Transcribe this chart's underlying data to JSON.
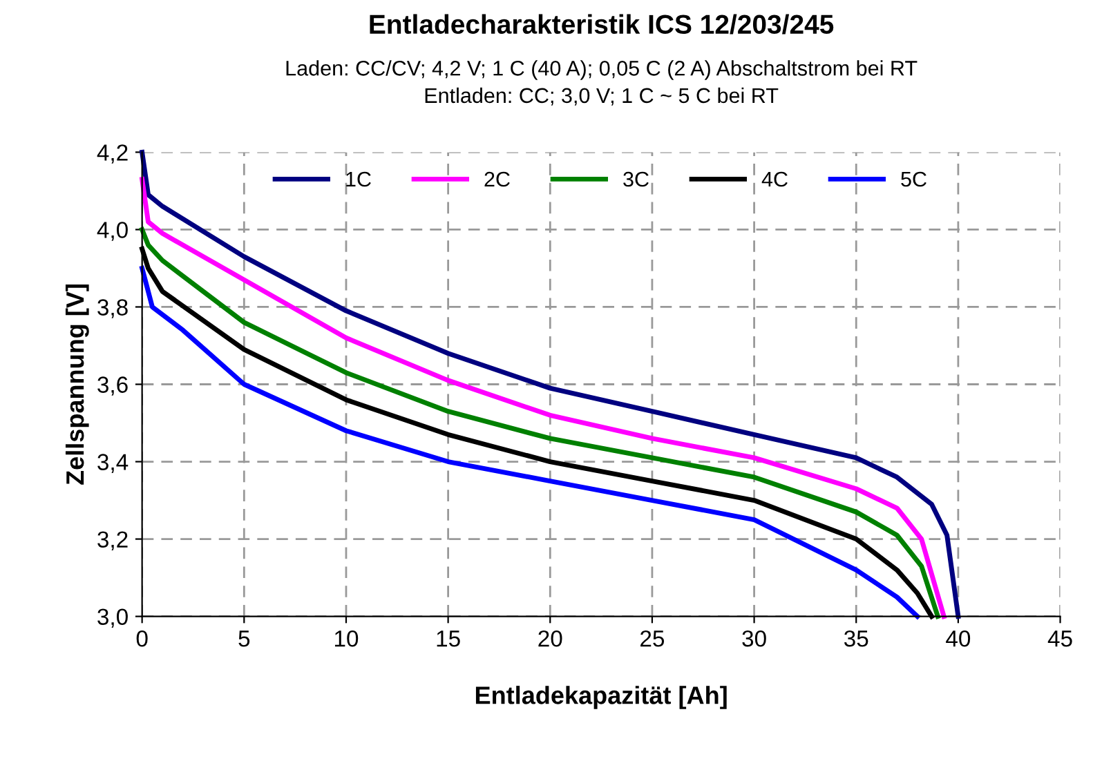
{
  "chart_data": {
    "type": "line",
    "title": "Entladecharakteristik ICS 12/203/245",
    "subtitle": "Laden: CC/CV; 4,2 V; 1 C (40 A); 0,05 C (2 A) Abschaltstrom bei RT\nEntladen: CC; 3,0 V; 1 C ~ 5 C bei RT",
    "xlabel": "Entladekapazität [Ah]",
    "ylabel": "Zellspannung [V]",
    "xlim": [
      0,
      45
    ],
    "xticks": [
      0,
      5,
      10,
      15,
      20,
      25,
      30,
      35,
      40,
      45
    ],
    "ylim": [
      3.0,
      4.2
    ],
    "yticks": [
      {
        "value": 3.0,
        "label": "3,0"
      },
      {
        "value": 3.2,
        "label": "3,2"
      },
      {
        "value": 3.4,
        "label": "3,4"
      },
      {
        "value": 3.6,
        "label": "3,6"
      },
      {
        "value": 3.8,
        "label": "3,8"
      },
      {
        "value": 4.0,
        "label": "4,0"
      },
      {
        "value": 4.2,
        "label": "4,2"
      }
    ],
    "grid": true,
    "legend": "top",
    "line_style": "solid",
    "marker": "none",
    "series": [
      {
        "name": "1C",
        "color": "#000080",
        "x": [
          0,
          0.3,
          1,
          5,
          10,
          15,
          20,
          25,
          30,
          35,
          37,
          38.7,
          39.45,
          40.0
        ],
        "values": [
          4.2,
          4.09,
          4.06,
          3.93,
          3.79,
          3.68,
          3.59,
          3.53,
          3.47,
          3.41,
          3.36,
          3.29,
          3.21,
          3.0
        ]
      },
      {
        "name": "2C",
        "color": "#ff00ff",
        "x": [
          0,
          0.3,
          1,
          5,
          10,
          15,
          20,
          25,
          30,
          35,
          37,
          38.2,
          39.3
        ],
        "values": [
          4.13,
          4.02,
          3.99,
          3.87,
          3.72,
          3.61,
          3.52,
          3.46,
          3.41,
          3.33,
          3.28,
          3.2,
          3.0
        ]
      },
      {
        "name": "3C",
        "color": "#008000",
        "x": [
          0,
          0.3,
          1,
          5,
          10,
          15,
          20,
          25,
          30,
          35,
          37,
          38.2,
          39.0
        ],
        "values": [
          4.0,
          3.96,
          3.92,
          3.76,
          3.63,
          3.53,
          3.46,
          3.41,
          3.36,
          3.27,
          3.21,
          3.13,
          3.0
        ]
      },
      {
        "name": "4C",
        "color": "#000000",
        "x": [
          0,
          0.3,
          1,
          5,
          10,
          15,
          20,
          25,
          30,
          35,
          37,
          38.0,
          38.7
        ],
        "values": [
          3.95,
          3.9,
          3.84,
          3.69,
          3.56,
          3.47,
          3.4,
          3.35,
          3.3,
          3.2,
          3.12,
          3.06,
          3.0
        ]
      },
      {
        "name": "5C",
        "color": "#0000ff",
        "x": [
          0,
          0.5,
          2,
          5,
          10,
          15,
          20,
          25,
          30,
          35,
          37,
          38.0
        ],
        "values": [
          3.9,
          3.8,
          3.74,
          3.6,
          3.48,
          3.4,
          3.35,
          3.3,
          3.25,
          3.12,
          3.05,
          3.0
        ]
      }
    ]
  }
}
